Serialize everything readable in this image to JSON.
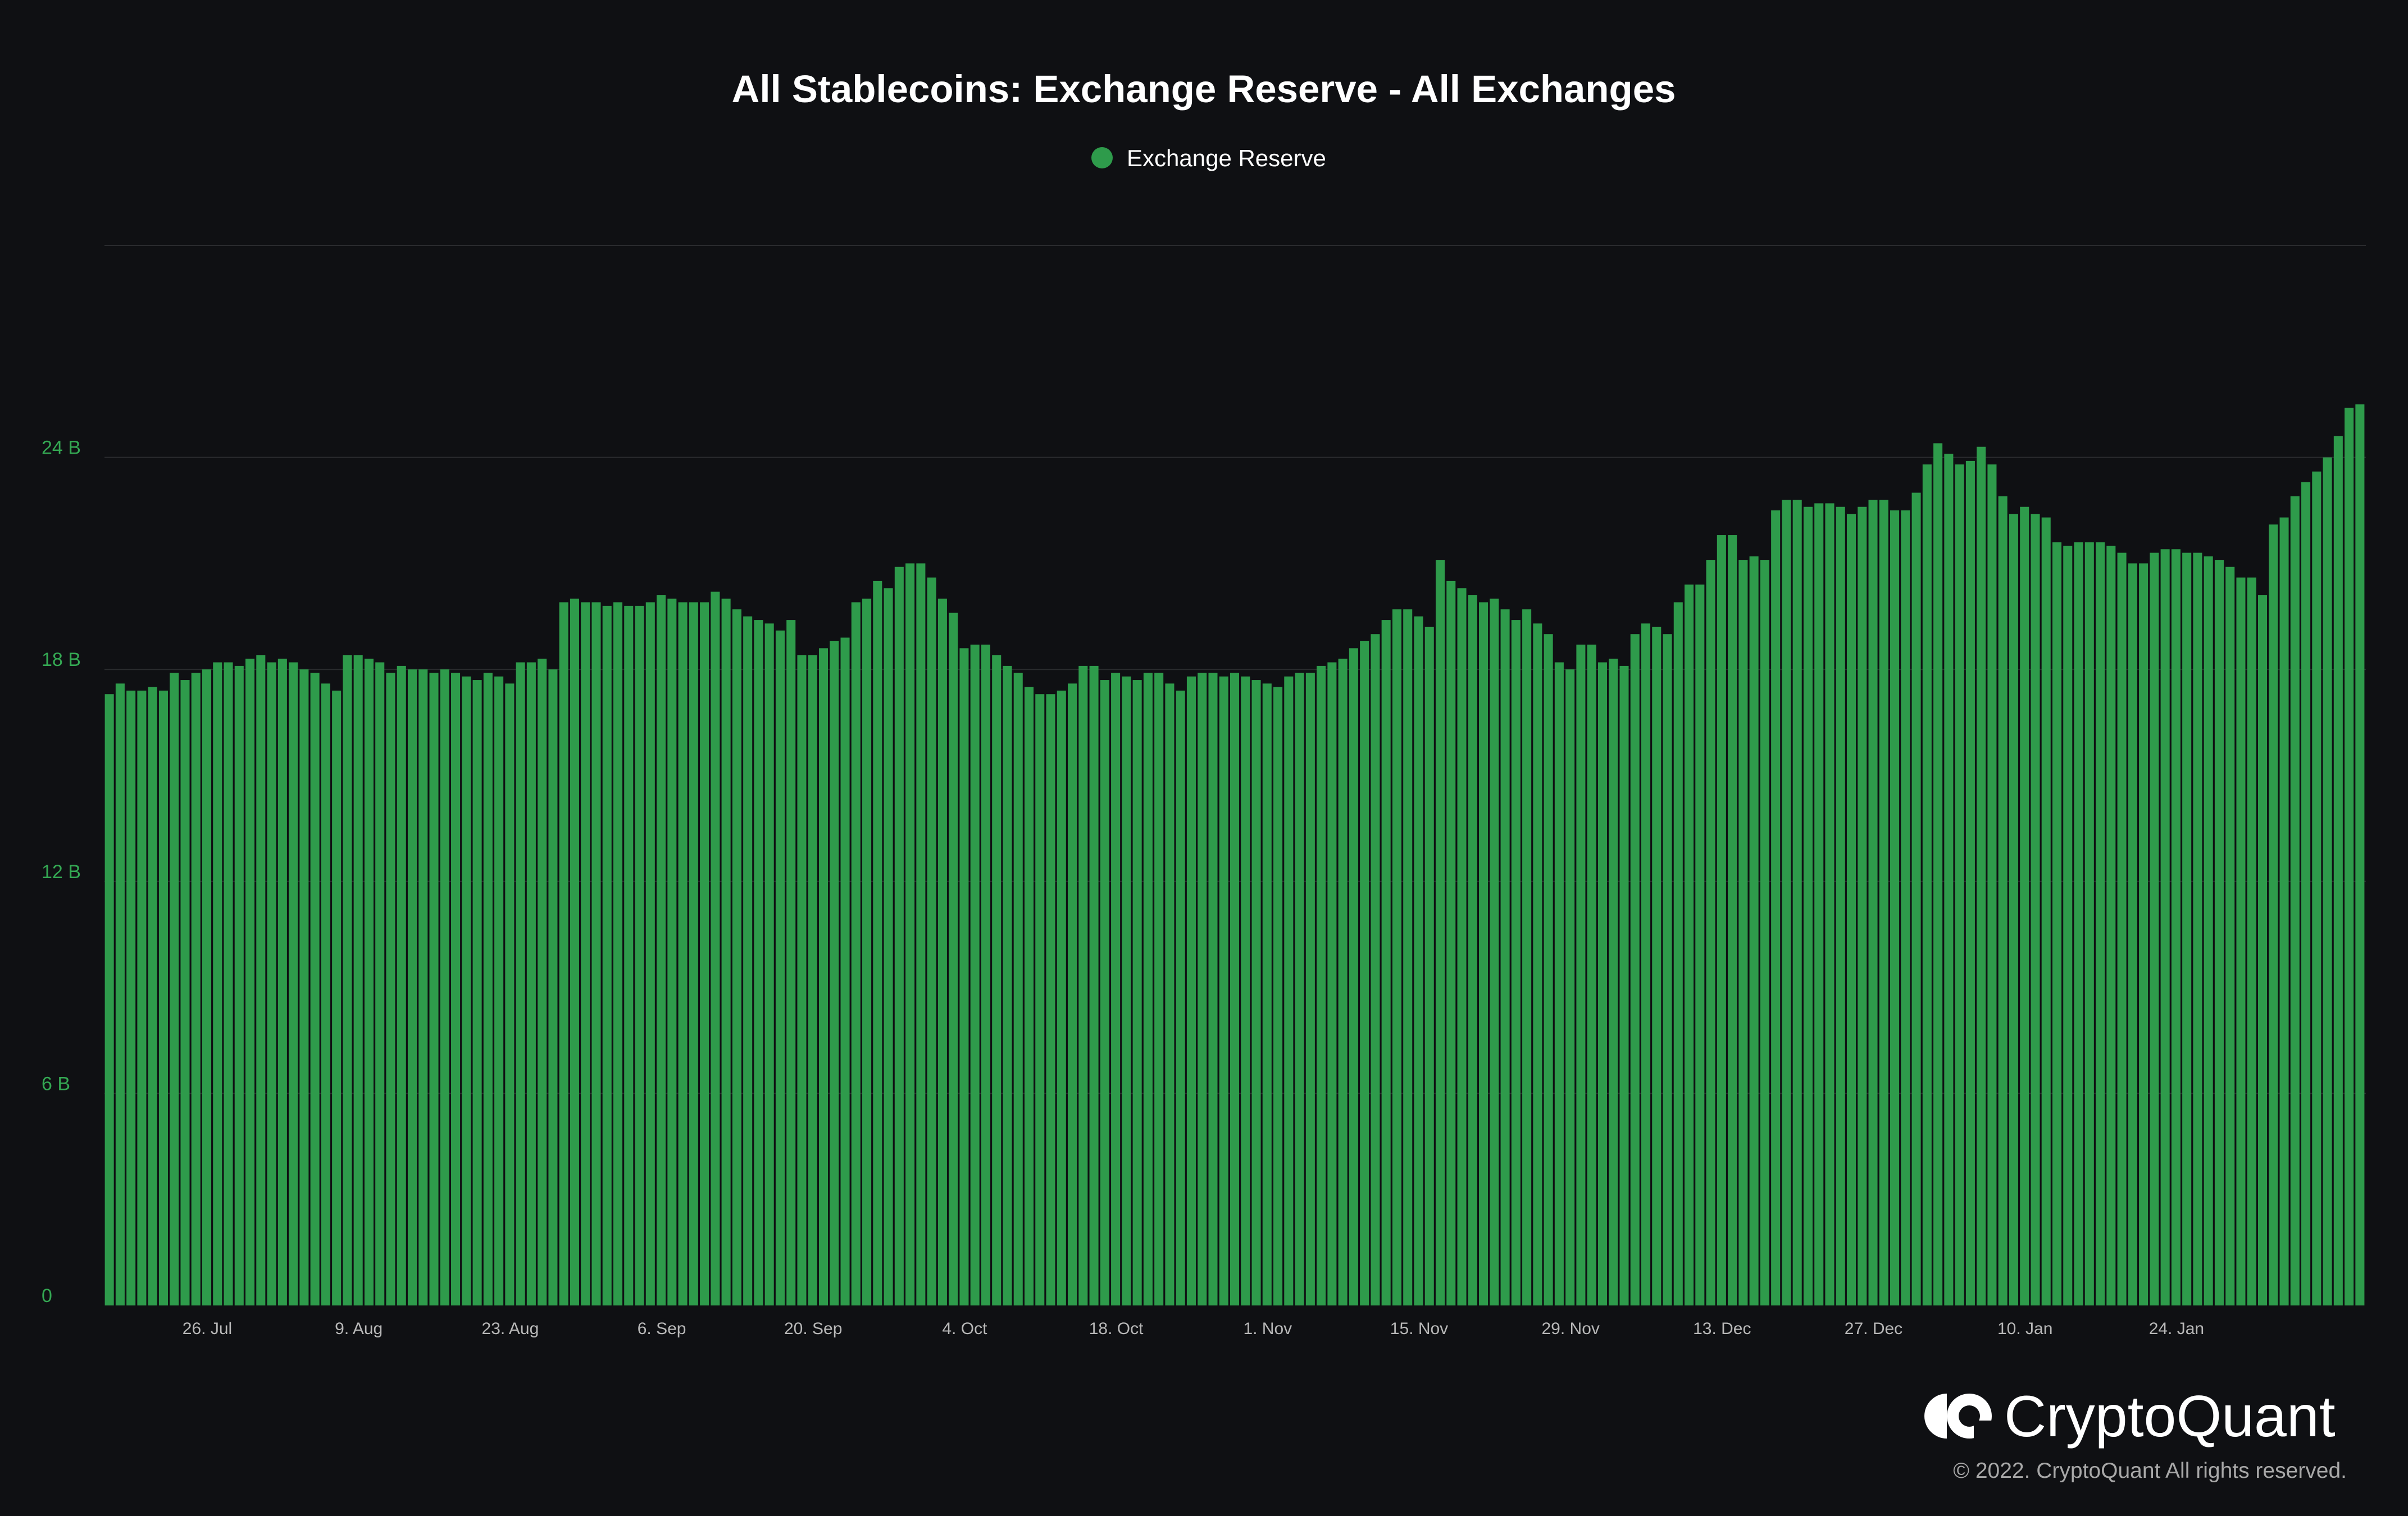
{
  "chart_data": {
    "type": "bar",
    "title": "All Stablecoins: Exchange Reserve - All Exchanges",
    "xlabel": "",
    "ylabel": "",
    "legend": {
      "placement": "top-center",
      "entries": [
        {
          "name": "Exchange Reserve",
          "color": "#2e9b4b"
        }
      ]
    },
    "grid": true,
    "ylim": [
      0,
      30
    ],
    "y_unit": "B",
    "y_ticks": [
      {
        "value": 0,
        "label": "0"
      },
      {
        "value": 6,
        "label": "6 B"
      },
      {
        "value": 12,
        "label": "12 B"
      },
      {
        "value": 18,
        "label": "18 B"
      },
      {
        "value": 24,
        "label": "24 B"
      }
    ],
    "x_range": [
      "2021-07-17",
      "2022-01-31"
    ],
    "x_ticks": [
      {
        "date": "2021-07-26",
        "label": "26. Jul"
      },
      {
        "date": "2021-08-09",
        "label": "9. Aug"
      },
      {
        "date": "2021-08-23",
        "label": "23. Aug"
      },
      {
        "date": "2021-09-06",
        "label": "6. Sep"
      },
      {
        "date": "2021-09-20",
        "label": "20. Sep"
      },
      {
        "date": "2021-10-04",
        "label": "4. Oct"
      },
      {
        "date": "2021-10-18",
        "label": "18. Oct"
      },
      {
        "date": "2021-11-01",
        "label": "1. Nov"
      },
      {
        "date": "2021-11-15",
        "label": "15. Nov"
      },
      {
        "date": "2021-11-29",
        "label": "29. Nov"
      },
      {
        "date": "2021-12-13",
        "label": "13. Dec"
      },
      {
        "date": "2021-12-27",
        "label": "27. Dec"
      },
      {
        "date": "2022-01-10",
        "label": "10. Jan"
      },
      {
        "date": "2022-01-24",
        "label": "24. Jan"
      }
    ],
    "series": [
      {
        "name": "Exchange Reserve",
        "color": "#2e9b4b",
        "start_date": "2021-07-17",
        "interval": "1 day",
        "values": [
          17.3,
          17.6,
          17.4,
          17.4,
          17.5,
          17.4,
          17.9,
          17.7,
          17.9,
          18.0,
          18.2,
          18.2,
          18.1,
          18.3,
          18.4,
          18.2,
          18.3,
          18.2,
          18.0,
          17.9,
          17.6,
          17.4,
          18.4,
          18.4,
          18.3,
          18.2,
          17.9,
          18.1,
          18.0,
          18.0,
          17.9,
          18.0,
          17.9,
          17.8,
          17.7,
          17.9,
          17.8,
          17.6,
          18.2,
          18.2,
          18.3,
          18.0,
          19.9,
          20.0,
          19.9,
          19.9,
          19.8,
          19.9,
          19.8,
          19.8,
          19.9,
          20.1,
          20.0,
          19.9,
          19.9,
          19.9,
          20.2,
          20.0,
          19.7,
          19.5,
          19.4,
          19.3,
          19.1,
          19.4,
          18.4,
          18.4,
          18.6,
          18.8,
          18.9,
          19.9,
          20.0,
          20.5,
          20.3,
          20.9,
          21.0,
          21.0,
          20.6,
          20.0,
          19.6,
          18.6,
          18.7,
          18.7,
          18.4,
          18.1,
          17.9,
          17.5,
          17.3,
          17.3,
          17.4,
          17.6,
          18.1,
          18.1,
          17.7,
          17.9,
          17.8,
          17.7,
          17.9,
          17.9,
          17.6,
          17.4,
          17.8,
          17.9,
          17.9,
          17.8,
          17.9,
          17.8,
          17.7,
          17.6,
          17.5,
          17.8,
          17.9,
          17.9,
          18.1,
          18.2,
          18.3,
          18.6,
          18.8,
          19.0,
          19.4,
          19.7,
          19.7,
          19.5,
          19.2,
          21.1,
          20.5,
          20.3,
          20.1,
          19.9,
          20.0,
          19.7,
          19.4,
          19.7,
          19.3,
          19.0,
          18.2,
          18.0,
          18.7,
          18.7,
          18.2,
          18.3,
          18.1,
          19.0,
          19.3,
          19.2,
          19.0,
          19.9,
          20.4,
          20.4,
          21.1,
          21.8,
          21.8,
          21.1,
          21.2,
          21.1,
          22.5,
          22.8,
          22.8,
          22.6,
          22.7,
          22.7,
          22.6,
          22.4,
          22.6,
          22.8,
          22.8,
          22.5,
          22.5,
          23.0,
          23.8,
          24.4,
          24.1,
          23.8,
          23.9,
          24.3,
          23.8,
          22.9,
          22.4,
          22.6,
          22.4,
          22.3,
          21.6,
          21.5,
          21.6,
          21.6,
          21.6,
          21.5,
          21.3,
          21.0,
          21.0,
          21.3,
          21.4,
          21.4,
          21.3,
          21.3,
          21.2,
          21.1,
          20.9,
          20.6,
          20.6,
          20.1,
          22.1,
          22.3,
          22.9,
          23.3,
          23.6,
          24.0,
          24.6,
          25.4,
          25.5
        ]
      }
    ]
  },
  "brand": {
    "logo_icon": "cryptoquant-logo-icon",
    "name": "CryptoQuant",
    "copyright": "© 2022. CryptoQuant All rights reserved."
  },
  "colors": {
    "background": "#0f1013",
    "bar": "#2e9b4b",
    "y_tick_label": "#34a853",
    "x_tick_label": "#b8b8b8",
    "grid": "#2a2b2e"
  }
}
